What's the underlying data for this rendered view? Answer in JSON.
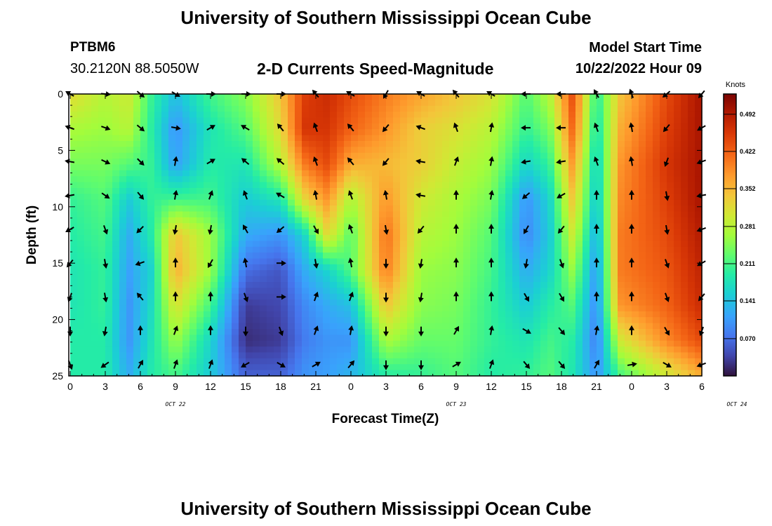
{
  "header": {
    "title": "University of Southern Mississippi Ocean Cube",
    "station_id": "PTBM6",
    "location": "30.2120N  88.5050W",
    "plot_title": "2-D Currents Speed-Magnitude",
    "model_label": "Model Start Time",
    "model_time": "10/22/2022 Hour 09"
  },
  "footer": {
    "title": "University of Southern Mississippi Ocean Cube"
  },
  "chart_data": {
    "type": "heatmap",
    "title": "2-D Currents Speed-Magnitude",
    "xlabel": "Forecast Time(Z)",
    "ylabel": "Depth (ft)",
    "x_ticks": [
      "0",
      "3",
      "6",
      "9",
      "12",
      "15",
      "18",
      "21",
      "0",
      "3",
      "6",
      "9",
      "12",
      "15",
      "18",
      "21",
      "0",
      "3",
      "6"
    ],
    "date_labels": [
      {
        "label": "OCT 22",
        "at_hour": 9
      },
      {
        "label": "OCT 23",
        "at_hour": 33
      },
      {
        "label": "OCT 24",
        "at_hour": 57
      }
    ],
    "xlim": [
      0,
      54
    ],
    "y_ticks": [
      0,
      5,
      10,
      15,
      20,
      25
    ],
    "ylim": [
      0,
      25
    ],
    "colorbar": {
      "unit": "Knots",
      "ticks": [
        "0.492",
        "0.422",
        "0.352",
        "0.281",
        "0.211",
        "0.141",
        "0.070"
      ],
      "min": 0.0,
      "max": 0.53
    },
    "speed_columns": [
      {
        "t": 0,
        "v": [
          0.32,
          0.27,
          0.24,
          0.2,
          0.19,
          0.18,
          0.18,
          0.19,
          0.19
        ]
      },
      {
        "t": 3,
        "v": [
          0.28,
          0.26,
          0.24,
          0.22,
          0.21,
          0.2,
          0.2,
          0.19,
          0.19
        ]
      },
      {
        "t": 5,
        "v": [
          0.3,
          0.28,
          0.22,
          0.15,
          0.12,
          0.11,
          0.1,
          0.1,
          0.12
        ]
      },
      {
        "t": 7,
        "v": [
          0.2,
          0.19,
          0.2,
          0.2,
          0.19,
          0.16,
          0.17,
          0.18,
          0.19
        ]
      },
      {
        "t": 9,
        "v": [
          0.14,
          0.1,
          0.11,
          0.21,
          0.34,
          0.36,
          0.31,
          0.26,
          0.21
        ]
      },
      {
        "t": 12,
        "v": [
          0.21,
          0.18,
          0.19,
          0.21,
          0.26,
          0.26,
          0.21,
          0.16,
          0.15
        ]
      },
      {
        "t": 15,
        "v": [
          0.25,
          0.22,
          0.18,
          0.15,
          0.12,
          0.07,
          0.03,
          0.02,
          0.06
        ]
      },
      {
        "t": 18,
        "v": [
          0.34,
          0.32,
          0.28,
          0.18,
          0.1,
          0.05,
          0.04,
          0.03,
          0.06
        ]
      },
      {
        "t": 20,
        "v": [
          0.45,
          0.46,
          0.4,
          0.32,
          0.16,
          0.12,
          0.09,
          0.08,
          0.1
        ]
      },
      {
        "t": 22,
        "v": [
          0.47,
          0.46,
          0.44,
          0.38,
          0.32,
          0.16,
          0.12,
          0.1,
          0.11
        ]
      },
      {
        "t": 24,
        "v": [
          0.44,
          0.42,
          0.36,
          0.27,
          0.22,
          0.22,
          0.14,
          0.1,
          0.13
        ]
      },
      {
        "t": 27,
        "v": [
          0.4,
          0.38,
          0.35,
          0.38,
          0.41,
          0.4,
          0.34,
          0.27,
          0.19
        ]
      },
      {
        "t": 30,
        "v": [
          0.37,
          0.33,
          0.33,
          0.3,
          0.28,
          0.26,
          0.25,
          0.23,
          0.2
        ]
      },
      {
        "t": 33,
        "v": [
          0.34,
          0.31,
          0.29,
          0.27,
          0.26,
          0.25,
          0.24,
          0.23,
          0.22
        ]
      },
      {
        "t": 36,
        "v": [
          0.31,
          0.28,
          0.26,
          0.24,
          0.22,
          0.21,
          0.2,
          0.2,
          0.19
        ]
      },
      {
        "t": 39,
        "v": [
          0.22,
          0.2,
          0.16,
          0.1,
          0.09,
          0.12,
          0.15,
          0.18,
          0.2
        ]
      },
      {
        "t": 41,
        "v": [
          0.28,
          0.24,
          0.2,
          0.16,
          0.15,
          0.16,
          0.19,
          0.21,
          0.22
        ]
      },
      {
        "t": 43,
        "v": [
          0.44,
          0.42,
          0.38,
          0.34,
          0.3,
          0.26,
          0.22,
          0.19,
          0.18
        ]
      },
      {
        "t": 45,
        "v": [
          0.19,
          0.17,
          0.15,
          0.14,
          0.12,
          0.1,
          0.09,
          0.08,
          0.1
        ]
      },
      {
        "t": 47,
        "v": [
          0.34,
          0.36,
          0.38,
          0.39,
          0.4,
          0.4,
          0.38,
          0.3,
          0.21
        ]
      },
      {
        "t": 51,
        "v": [
          0.44,
          0.45,
          0.46,
          0.45,
          0.44,
          0.43,
          0.42,
          0.39,
          0.3
        ]
      },
      {
        "t": 54,
        "v": [
          0.5,
          0.5,
          0.5,
          0.5,
          0.49,
          0.48,
          0.47,
          0.44,
          0.36
        ]
      }
    ],
    "vector_depths": [
      0,
      3,
      6,
      9,
      12,
      15,
      18,
      21,
      24
    ],
    "vector_columns": [
      {
        "t": 0,
        "dir": [
          -60,
          -70,
          -80,
          -100,
          -120,
          -140,
          -160,
          -180,
          -200
        ]
      },
      {
        "t": 3,
        "dir": [
          95,
          110,
          115,
          125,
          160,
          170,
          170,
          190,
          235
        ]
      },
      {
        "t": 6,
        "dir": [
          130,
          130,
          135,
          140,
          -135,
          -110,
          -40,
          0,
          30
        ]
      },
      {
        "t": 9,
        "dir": [
          120,
          100,
          10,
          10,
          190,
          0,
          0,
          20,
          20
        ]
      },
      {
        "t": 12,
        "dir": [
          90,
          60,
          60,
          20,
          190,
          210,
          0,
          0,
          20
        ]
      },
      {
        "t": 15,
        "dir": [
          90,
          -60,
          -50,
          -20,
          -30,
          -10,
          160,
          180,
          -120
        ]
      },
      {
        "t": 18,
        "dir": [
          90,
          -40,
          -50,
          -60,
          -130,
          90,
          90,
          160,
          120
        ]
      },
      {
        "t": 21,
        "dir": [
          -40,
          -20,
          -20,
          -10,
          150,
          170,
          20,
          20,
          60
        ]
      },
      {
        "t": 24,
        "dir": [
          -60,
          -40,
          -40,
          -20,
          -20,
          -10,
          20,
          10,
          40
        ]
      },
      {
        "t": 27,
        "dir": [
          -150,
          -140,
          -140,
          -10,
          170,
          180,
          180,
          180,
          180
        ]
      },
      {
        "t": 30,
        "dir": [
          -60,
          -70,
          -80,
          -80,
          -140,
          -170,
          -170,
          180,
          180
        ]
      },
      {
        "t": 33,
        "dir": [
          -40,
          -20,
          20,
          0,
          0,
          0,
          0,
          30,
          60
        ]
      },
      {
        "t": 36,
        "dir": [
          -60,
          10,
          10,
          10,
          0,
          0,
          0,
          10,
          20
        ]
      },
      {
        "t": 39,
        "dir": [
          -90,
          -90,
          -100,
          -130,
          -150,
          -170,
          150,
          120,
          140
        ]
      },
      {
        "t": 42,
        "dir": [
          -90,
          -90,
          -100,
          -120,
          -140,
          160,
          150,
          140,
          140
        ]
      },
      {
        "t": 45,
        "dir": [
          -30,
          -20,
          -20,
          0,
          0,
          0,
          0,
          10,
          30
        ]
      },
      {
        "t": 48,
        "dir": [
          -20,
          -10,
          -10,
          0,
          0,
          0,
          0,
          0,
          80
        ]
      },
      {
        "t": 51,
        "dir": [
          -130,
          -140,
          -160,
          170,
          170,
          160,
          160,
          150,
          120
        ]
      },
      {
        "t": 54,
        "dir": [
          -140,
          -120,
          -110,
          -100,
          -110,
          -120,
          -140,
          -160,
          -110
        ]
      }
    ]
  }
}
